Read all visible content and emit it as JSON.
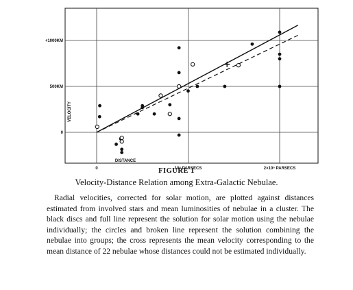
{
  "chart_data": {
    "type": "scatter",
    "ylabel": "VELOCITY",
    "xlabel": "DISTANCE",
    "x_unit": "parsecs",
    "y_unit": "km/s",
    "xlim": [
      -1e-06,
      2.2e-06
    ],
    "ylim": [
      -300,
      1150
    ],
    "grid": true,
    "x_ticks": [
      {
        "value": 0,
        "label": "0"
      },
      {
        "value": 1000000,
        "label": "10⁶ PARSECS"
      },
      {
        "value": 2000000,
        "label": "2×10⁶ PARSECS"
      }
    ],
    "y_ticks": [
      {
        "value": 0,
        "label": "0"
      },
      {
        "value": 500,
        "label": "500KM"
      },
      {
        "value": 1000,
        "label": "+1000KM"
      }
    ],
    "black_discs": [
      {
        "x": 32000,
        "y": 170
      },
      {
        "x": 34000,
        "y": 290
      },
      {
        "x": 214000,
        "y": -130
      },
      {
        "x": 263000,
        "y": -70
      },
      {
        "x": 275000,
        "y": -185
      },
      {
        "x": 275000,
        "y": -220
      },
      {
        "x": 450000,
        "y": 200
      },
      {
        "x": 500000,
        "y": 290
      },
      {
        "x": 500000,
        "y": 270
      },
      {
        "x": 630000,
        "y": 200
      },
      {
        "x": 800000,
        "y": 300
      },
      {
        "x": 900000,
        "y": -30
      },
      {
        "x": 900000,
        "y": 650
      },
      {
        "x": 900000,
        "y": 150
      },
      {
        "x": 900000,
        "y": 500
      },
      {
        "x": 900000,
        "y": 920
      },
      {
        "x": 1000000,
        "y": 450
      },
      {
        "x": 1100000,
        "y": 500
      },
      {
        "x": 1400000,
        "y": 500
      },
      {
        "x": 1700000,
        "y": 960
      },
      {
        "x": 2000000,
        "y": 500
      },
      {
        "x": 2000000,
        "y": 850
      },
      {
        "x": 2000000,
        "y": 800
      },
      {
        "x": 2000000,
        "y": 1090
      }
    ],
    "circles": [
      {
        "x": 6000,
        "y": 60
      },
      {
        "x": 275000,
        "y": -60
      },
      {
        "x": 275000,
        "y": -100
      },
      {
        "x": 700000,
        "y": 400
      },
      {
        "x": 800000,
        "y": 200
      },
      {
        "x": 900000,
        "y": 500
      },
      {
        "x": 1050000,
        "y": 740
      },
      {
        "x": 1550000,
        "y": 730
      }
    ],
    "cross": {
      "x": 1425000,
      "y": 740
    },
    "full_line": {
      "slope": 0.00053,
      "x_range": [
        0,
        2200000
      ]
    },
    "broken_line": {
      "slope": 0.00048,
      "x_range": [
        0,
        2200000
      ]
    }
  },
  "figure_label": "FIGURE 1",
  "figure_title": "Velocity-Distance Relation among Extra-Galactic Nebulae.",
  "caption": "Radial velocities, corrected for solar motion, are plotted against distances estimated from involved stars and mean luminosities of nebulae in a cluster. The black discs and full line represent the solution for solar motion using the nebulae individually; the circles and broken line represent the solution combining the nebulae into groups; the cross represents the mean velocity corresponding to the mean distance of 22 nebulae whose distances could not be estimated individually.",
  "colors": {
    "ink": "#111111",
    "grid": "#444444",
    "paper": "#ffffff"
  }
}
